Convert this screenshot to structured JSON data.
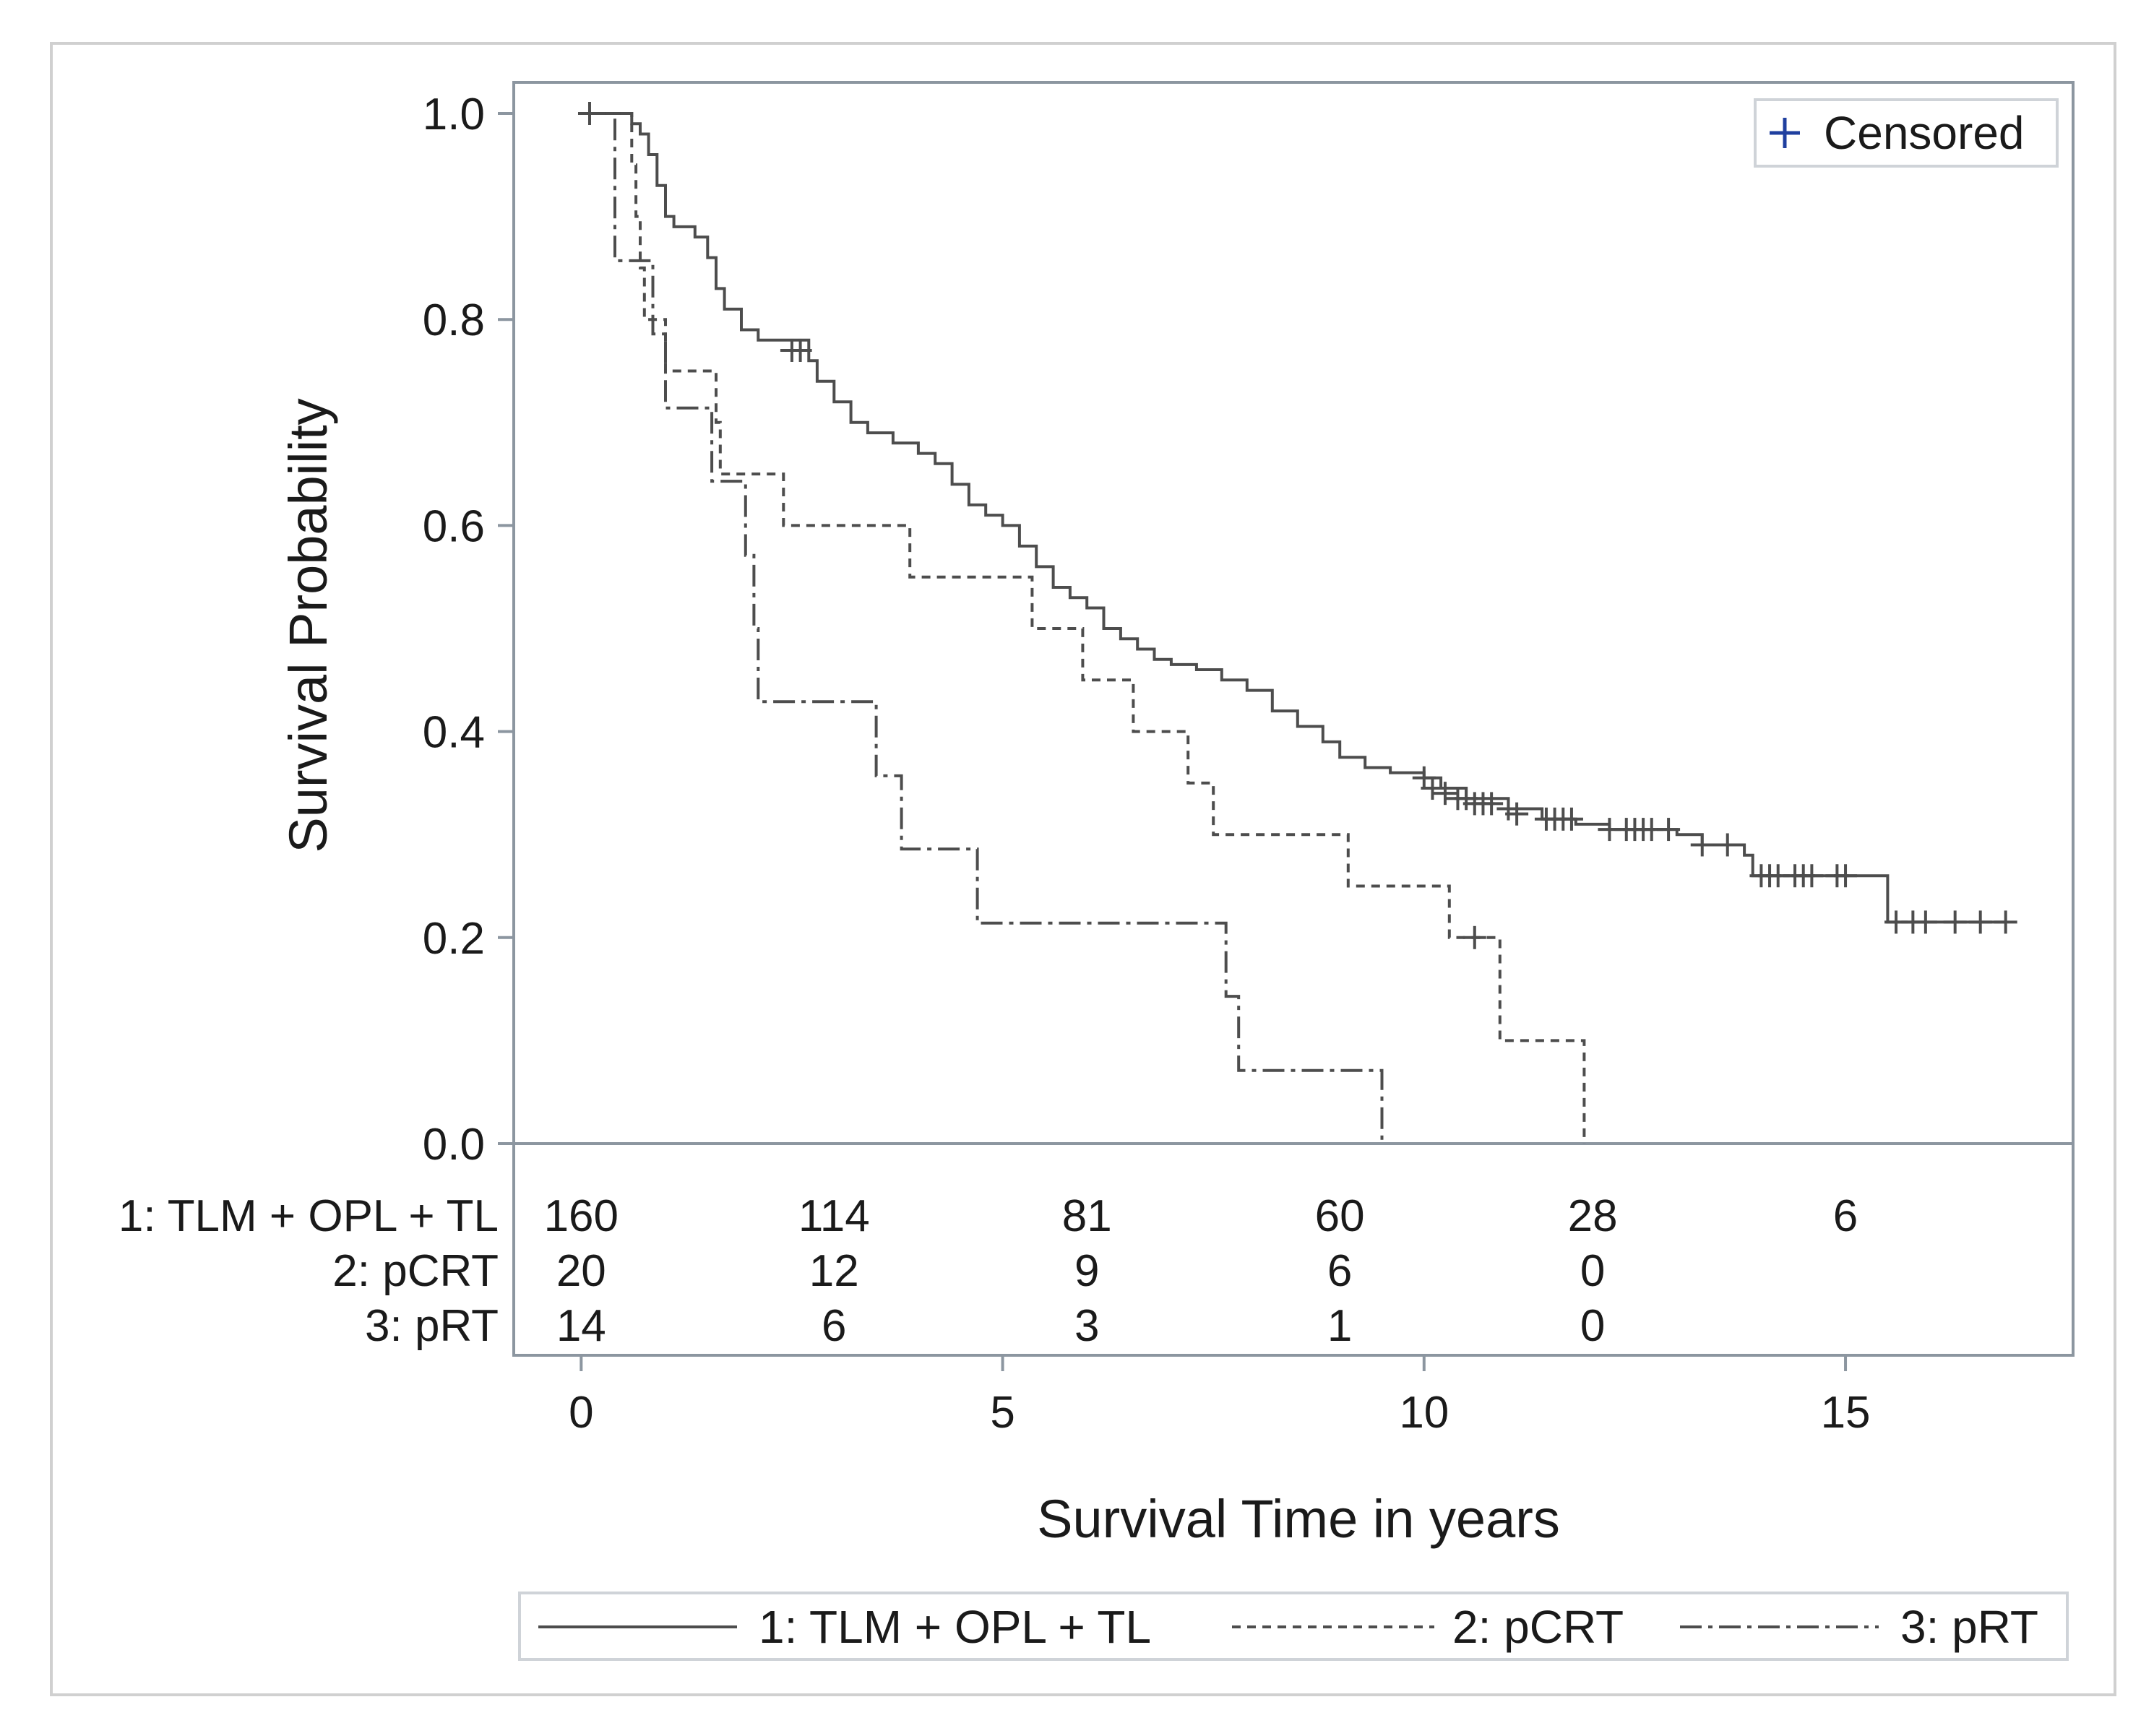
{
  "chart_data": {
    "type": "line",
    "subtype": "kaplan-meier",
    "xlabel": "Survival Time in years",
    "ylabel": "Survival Probability",
    "xlim": [
      -0.8,
      17.7
    ],
    "ylim": [
      0,
      1.03
    ],
    "x_ticks": [
      0,
      5,
      10,
      15
    ],
    "x_tick_labels": [
      "0",
      "5",
      "10",
      "15"
    ],
    "y_ticks": [
      0,
      0.2,
      0.4,
      0.6,
      0.8,
      1.0
    ],
    "y_tick_labels": [
      "0.0",
      "0.2",
      "0.4",
      "0.6",
      "0.8",
      "1.0"
    ],
    "censored_label": "Censored",
    "colors": {
      "line": "#4d4d4d",
      "censor_marker": "#1f3f9f",
      "frame": "#8c96a0",
      "outer": "#d0d0d0"
    },
    "series": [
      {
        "name": "1: TLM + OPL + TL",
        "dash": "solid",
        "points": [
          [
            0,
            1.0
          ],
          [
            0.5,
            1.0
          ],
          [
            0.6,
            0.99
          ],
          [
            0.7,
            0.98
          ],
          [
            0.8,
            0.96
          ],
          [
            0.9,
            0.93
          ],
          [
            1.0,
            0.9
          ],
          [
            1.1,
            0.89
          ],
          [
            1.35,
            0.88
          ],
          [
            1.5,
            0.86
          ],
          [
            1.6,
            0.83
          ],
          [
            1.7,
            0.81
          ],
          [
            1.9,
            0.79
          ],
          [
            2.1,
            0.78
          ],
          [
            2.5,
            0.78
          ],
          [
            2.7,
            0.76
          ],
          [
            2.8,
            0.74
          ],
          [
            3.0,
            0.72
          ],
          [
            3.2,
            0.7
          ],
          [
            3.4,
            0.69
          ],
          [
            3.7,
            0.68
          ],
          [
            4.0,
            0.67
          ],
          [
            4.2,
            0.66
          ],
          [
            4.4,
            0.64
          ],
          [
            4.6,
            0.62
          ],
          [
            4.8,
            0.61
          ],
          [
            5.0,
            0.6
          ],
          [
            5.2,
            0.58
          ],
          [
            5.4,
            0.56
          ],
          [
            5.6,
            0.54
          ],
          [
            5.8,
            0.53
          ],
          [
            6.0,
            0.52
          ],
          [
            6.2,
            0.5
          ],
          [
            6.4,
            0.49
          ],
          [
            6.6,
            0.48
          ],
          [
            6.8,
            0.47
          ],
          [
            7.0,
            0.465
          ],
          [
            7.3,
            0.46
          ],
          [
            7.6,
            0.45
          ],
          [
            7.9,
            0.44
          ],
          [
            8.2,
            0.42
          ],
          [
            8.5,
            0.405
          ],
          [
            8.8,
            0.39
          ],
          [
            9.0,
            0.375
          ],
          [
            9.3,
            0.365
          ],
          [
            9.6,
            0.36
          ],
          [
            10.0,
            0.355
          ],
          [
            10.2,
            0.345
          ],
          [
            10.5,
            0.335
          ],
          [
            11.0,
            0.325
          ],
          [
            11.4,
            0.315
          ],
          [
            11.8,
            0.31
          ],
          [
            12.2,
            0.305
          ],
          [
            13.0,
            0.3
          ],
          [
            13.3,
            0.29
          ],
          [
            13.8,
            0.28
          ],
          [
            13.9,
            0.26
          ],
          [
            15.5,
            0.26
          ],
          [
            15.5,
            0.215
          ],
          [
            16.9,
            0.215
          ]
        ],
        "censored": [
          [
            0.1,
            1.0
          ],
          [
            2.5,
            0.77
          ],
          [
            2.6,
            0.77
          ],
          [
            10.0,
            0.355
          ],
          [
            10.1,
            0.345
          ],
          [
            10.25,
            0.34
          ],
          [
            10.4,
            0.335
          ],
          [
            10.5,
            0.335
          ],
          [
            10.6,
            0.33
          ],
          [
            10.7,
            0.33
          ],
          [
            10.8,
            0.33
          ],
          [
            11.0,
            0.325
          ],
          [
            11.1,
            0.32
          ],
          [
            11.45,
            0.315
          ],
          [
            11.55,
            0.315
          ],
          [
            11.65,
            0.315
          ],
          [
            11.75,
            0.315
          ],
          [
            12.2,
            0.305
          ],
          [
            12.4,
            0.305
          ],
          [
            12.5,
            0.305
          ],
          [
            12.6,
            0.305
          ],
          [
            12.7,
            0.305
          ],
          [
            12.9,
            0.305
          ],
          [
            13.3,
            0.29
          ],
          [
            13.6,
            0.29
          ],
          [
            14.0,
            0.26
          ],
          [
            14.1,
            0.26
          ],
          [
            14.2,
            0.26
          ],
          [
            14.4,
            0.26
          ],
          [
            14.5,
            0.26
          ],
          [
            14.6,
            0.26
          ],
          [
            14.9,
            0.26
          ],
          [
            15.0,
            0.26
          ],
          [
            15.6,
            0.215
          ],
          [
            15.8,
            0.215
          ],
          [
            15.95,
            0.215
          ],
          [
            16.3,
            0.215
          ],
          [
            16.6,
            0.215
          ],
          [
            16.9,
            0.215
          ]
        ]
      },
      {
        "name": "2: pCRT",
        "dash": "dashed",
        "points": [
          [
            0,
            1.0
          ],
          [
            0.6,
            1.0
          ],
          [
            0.6,
            0.95
          ],
          [
            0.65,
            0.9
          ],
          [
            0.7,
            0.85
          ],
          [
            0.75,
            0.8
          ],
          [
            1.0,
            0.8
          ],
          [
            1.0,
            0.75
          ],
          [
            1.6,
            0.75
          ],
          [
            1.6,
            0.7
          ],
          [
            1.65,
            0.65
          ],
          [
            2.4,
            0.65
          ],
          [
            2.4,
            0.6
          ],
          [
            3.9,
            0.6
          ],
          [
            3.9,
            0.55
          ],
          [
            5.35,
            0.55
          ],
          [
            5.35,
            0.5
          ],
          [
            5.95,
            0.5
          ],
          [
            5.95,
            0.45
          ],
          [
            6.55,
            0.45
          ],
          [
            6.55,
            0.4
          ],
          [
            7.2,
            0.4
          ],
          [
            7.2,
            0.35
          ],
          [
            7.5,
            0.35
          ],
          [
            7.5,
            0.3
          ],
          [
            9.1,
            0.3
          ],
          [
            9.1,
            0.25
          ],
          [
            10.3,
            0.25
          ],
          [
            10.3,
            0.2
          ],
          [
            10.9,
            0.2
          ],
          [
            10.9,
            0.1
          ],
          [
            11.9,
            0.1
          ],
          [
            11.9,
            0.0
          ]
        ],
        "censored": [
          [
            10.6,
            0.2
          ]
        ]
      },
      {
        "name": "3: pRT",
        "dash": "dashdot",
        "points": [
          [
            0,
            1.0
          ],
          [
            0.4,
            1.0
          ],
          [
            0.4,
            0.857
          ],
          [
            0.85,
            0.857
          ],
          [
            0.85,
            0.786
          ],
          [
            1.0,
            0.786
          ],
          [
            1.0,
            0.714
          ],
          [
            1.55,
            0.714
          ],
          [
            1.55,
            0.643
          ],
          [
            1.95,
            0.643
          ],
          [
            1.95,
            0.571
          ],
          [
            2.05,
            0.571
          ],
          [
            2.05,
            0.5
          ],
          [
            2.1,
            0.5
          ],
          [
            2.1,
            0.429
          ],
          [
            3.5,
            0.429
          ],
          [
            3.5,
            0.357
          ],
          [
            3.8,
            0.357
          ],
          [
            3.8,
            0.286
          ],
          [
            4.7,
            0.286
          ],
          [
            4.7,
            0.214
          ],
          [
            7.65,
            0.214
          ],
          [
            7.65,
            0.143
          ],
          [
            7.8,
            0.143
          ],
          [
            7.8,
            0.071
          ],
          [
            9.5,
            0.071
          ],
          [
            9.5,
            0.0
          ]
        ],
        "censored": []
      }
    ],
    "risk_table": {
      "times": [
        0,
        3,
        6,
        9,
        12,
        15
      ],
      "rows": [
        {
          "label": "1: TLM + OPL + TL",
          "counts": [
            "160",
            "114",
            "81",
            "60",
            "28",
            "6"
          ]
        },
        {
          "label": "2: pCRT",
          "counts": [
            "20",
            "12",
            "9",
            "6",
            "0",
            ""
          ]
        },
        {
          "label": "3: pRT",
          "counts": [
            "14",
            "6",
            "3",
            "1",
            "0",
            ""
          ]
        }
      ]
    },
    "legend": [
      {
        "label": "1: TLM + OPL + TL",
        "dash": "solid"
      },
      {
        "label": "2: pCRT",
        "dash": "dashed"
      },
      {
        "label": "3: pRT",
        "dash": "dashdot"
      }
    ]
  }
}
